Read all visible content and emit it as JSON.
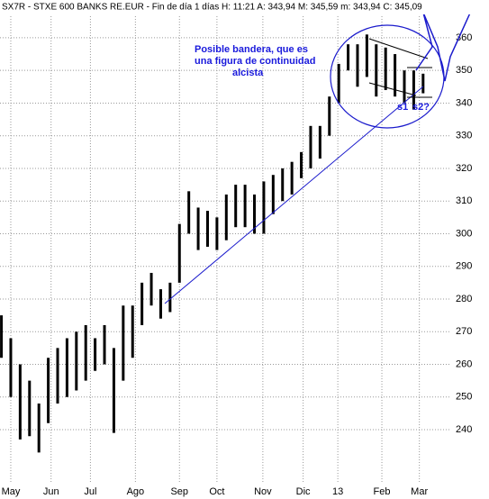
{
  "chart_data": {
    "type": "range-bar",
    "title": "SX7R - STXE 600 BANKS RE.EUR - Fin de día 1 días H: 11:21 A: 343,94 M: 345,59 m: 343,94 C: 345,09",
    "annotation": [
      "Posible bandera, que es",
      "una figura de continuidad",
      "alcista"
    ],
    "support_labels": [
      "s1",
      "s2?"
    ],
    "color": "#000000",
    "x": [
      -1,
      0,
      1,
      2,
      3,
      4,
      5,
      6,
      7,
      8,
      9,
      10,
      11,
      12,
      13,
      14,
      15,
      16,
      17,
      18,
      19,
      20,
      21,
      22,
      23,
      24,
      25,
      26,
      27,
      28,
      29,
      30,
      31,
      32,
      33,
      34,
      35,
      36,
      37,
      38,
      39,
      40,
      41,
      42,
      43,
      44
    ],
    "high": [
      275,
      268,
      260,
      255,
      248,
      262,
      265,
      268,
      270,
      272,
      268,
      272,
      265,
      278,
      278,
      285,
      288,
      283,
      285,
      303,
      313,
      308,
      307,
      305,
      312,
      315,
      315,
      312,
      316,
      318,
      320,
      322,
      325,
      333,
      333,
      342,
      352,
      358,
      358,
      361,
      358,
      357,
      355,
      350,
      350,
      349
    ],
    "low": [
      262,
      250,
      237,
      238,
      233,
      242,
      248,
      250,
      252,
      255,
      258,
      260,
      239,
      255,
      262,
      272,
      278,
      274,
      276,
      285,
      300,
      295,
      296,
      295,
      298,
      302,
      302,
      300,
      300,
      306,
      310,
      312,
      317,
      320,
      323,
      330,
      340,
      350,
      345,
      348,
      342,
      344,
      342,
      340,
      338,
      343
    ],
    "xlim": [
      -1.15,
      46.9
    ],
    "xticks": [
      {
        "value": 0,
        "label": "May"
      },
      {
        "value": 4.3,
        "label": "Jun"
      },
      {
        "value": 8.5,
        "label": "Jul"
      },
      {
        "value": 13.3,
        "label": "Ago"
      },
      {
        "value": 18,
        "label": "Sep"
      },
      {
        "value": 22,
        "label": "Oct"
      },
      {
        "value": 26.9,
        "label": "Nov"
      },
      {
        "value": 31.2,
        "label": "Dic"
      },
      {
        "value": 34.9,
        "label": "13"
      },
      {
        "value": 39.6,
        "label": "Feb"
      },
      {
        "value": 43.6,
        "label": "Mar"
      }
    ],
    "ylim": [
      224,
      366.6
    ],
    "yticks": [
      240,
      250,
      260,
      270,
      280,
      290,
      300,
      310,
      320,
      330,
      340,
      350,
      360
    ],
    "grid": true
  }
}
